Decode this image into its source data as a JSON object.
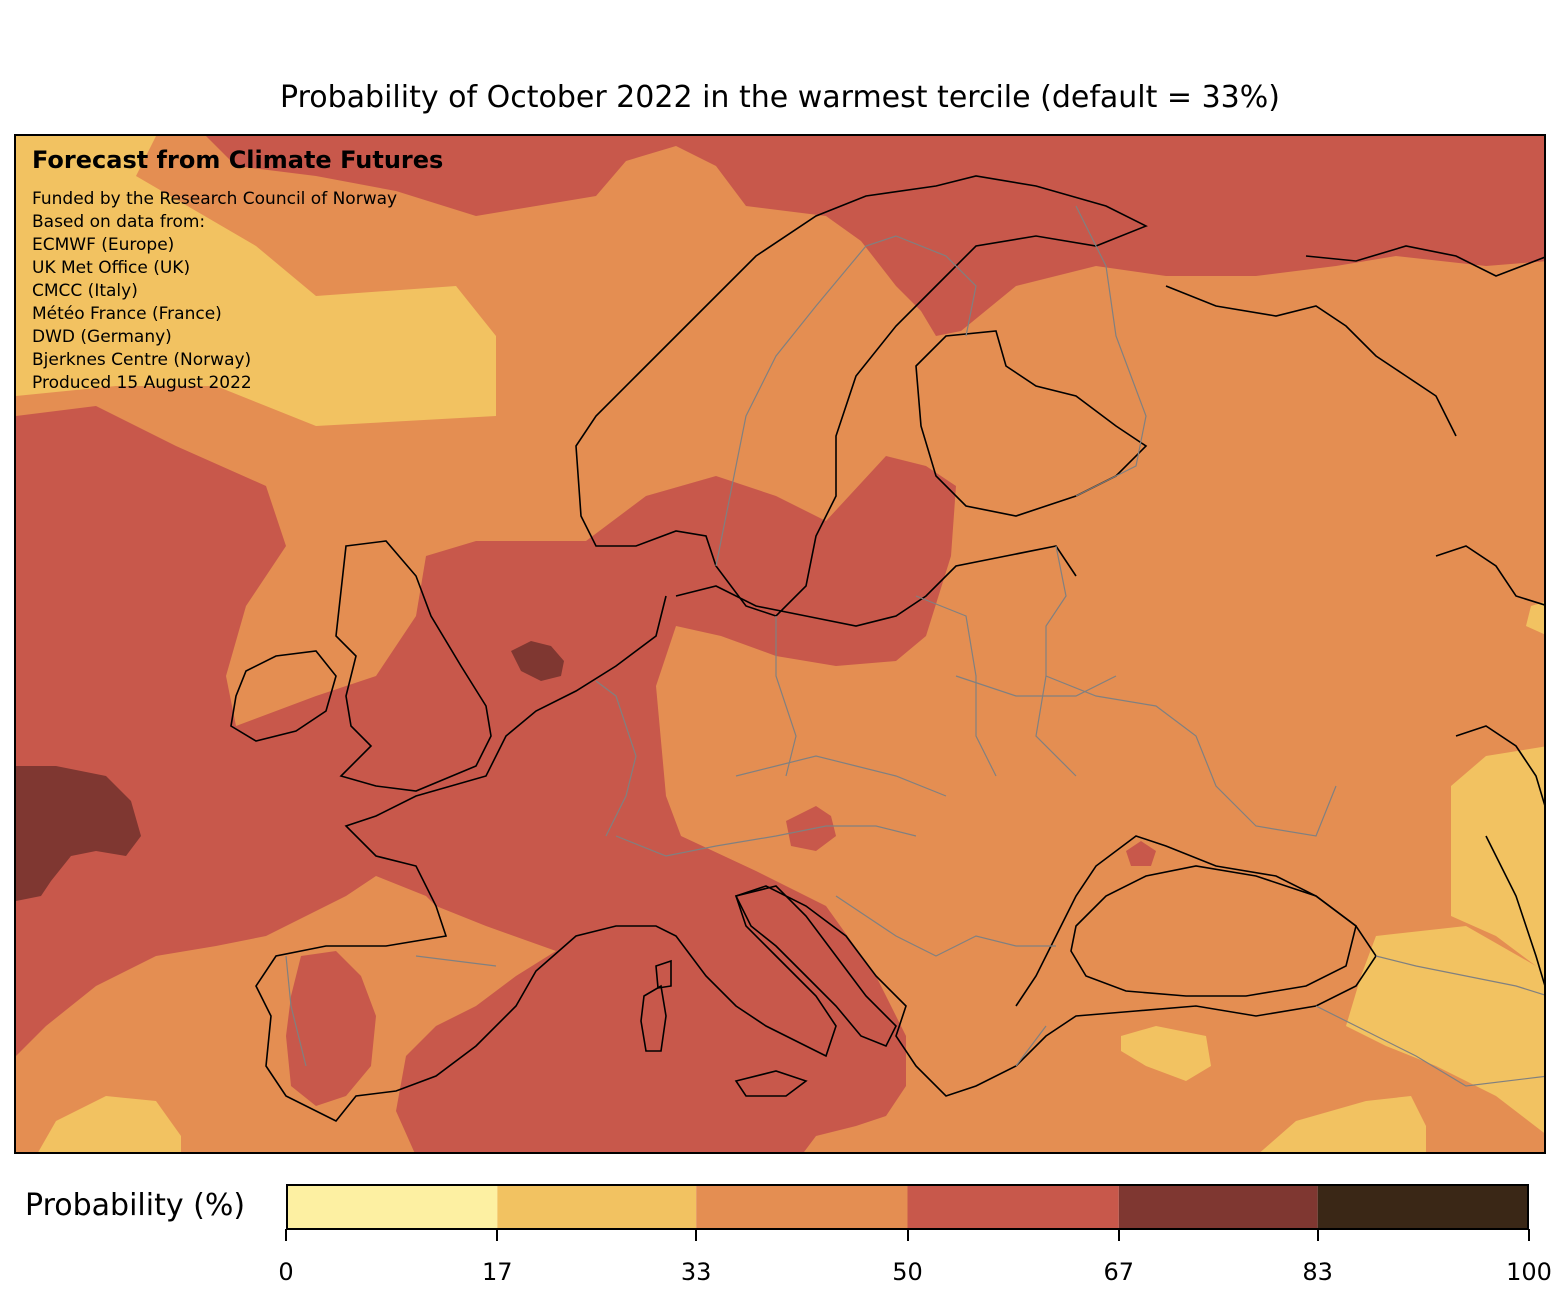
{
  "title": "Probability of October 2022 in the warmest tercile (default = 33%)",
  "credits": {
    "heading": "Forecast from Climate Futures",
    "lines": [
      "Funded by the Research Council of Norway",
      "Based on data from:",
      "ECMWF (Europe)",
      "UK Met Office (UK)",
      "CMCC (Italy)",
      "Météo France (France)",
      "DWD (Germany)",
      "Bjerknes Centre (Norway)",
      "Produced 15 August 2022"
    ]
  },
  "colorbar": {
    "label": "Probability (%)",
    "ticks": [
      "0",
      "17",
      "33",
      "50",
      "67",
      "83",
      "100"
    ],
    "bins": [
      {
        "from": 0,
        "to": 17,
        "color": "#fdf0a2"
      },
      {
        "from": 17,
        "to": 33,
        "color": "#f2c261"
      },
      {
        "from": 33,
        "to": 50,
        "color": "#e48e52"
      },
      {
        "from": 50,
        "to": 67,
        "color": "#c8584b"
      },
      {
        "from": 67,
        "to": 83,
        "color": "#7f3731"
      },
      {
        "from": 83,
        "to": 100,
        "color": "#3a2716"
      }
    ]
  },
  "colors": {
    "low": "#f2c261",
    "mid": "#e48e52",
    "high": "#c8584b",
    "very_high": "#7f3731",
    "coastline": "#000000",
    "borders": "#808080"
  }
}
